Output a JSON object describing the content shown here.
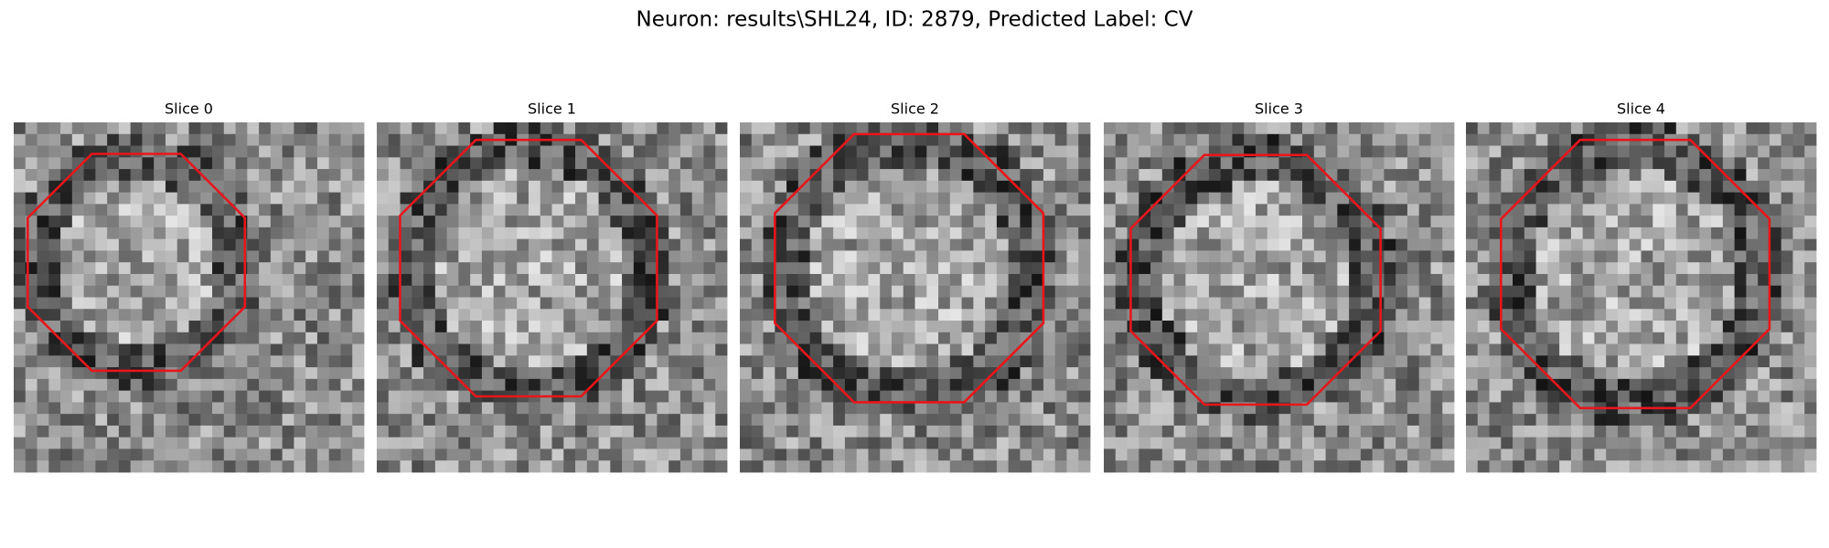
{
  "title": "Neuron: results\\SHL24, ID: 2879, Predicted Label: CV",
  "panels": [
    {
      "title": "Slice 0"
    },
    {
      "title": "Slice 1"
    },
    {
      "title": "Slice 2"
    },
    {
      "title": "Slice 3"
    },
    {
      "title": "Slice 4"
    }
  ]
}
